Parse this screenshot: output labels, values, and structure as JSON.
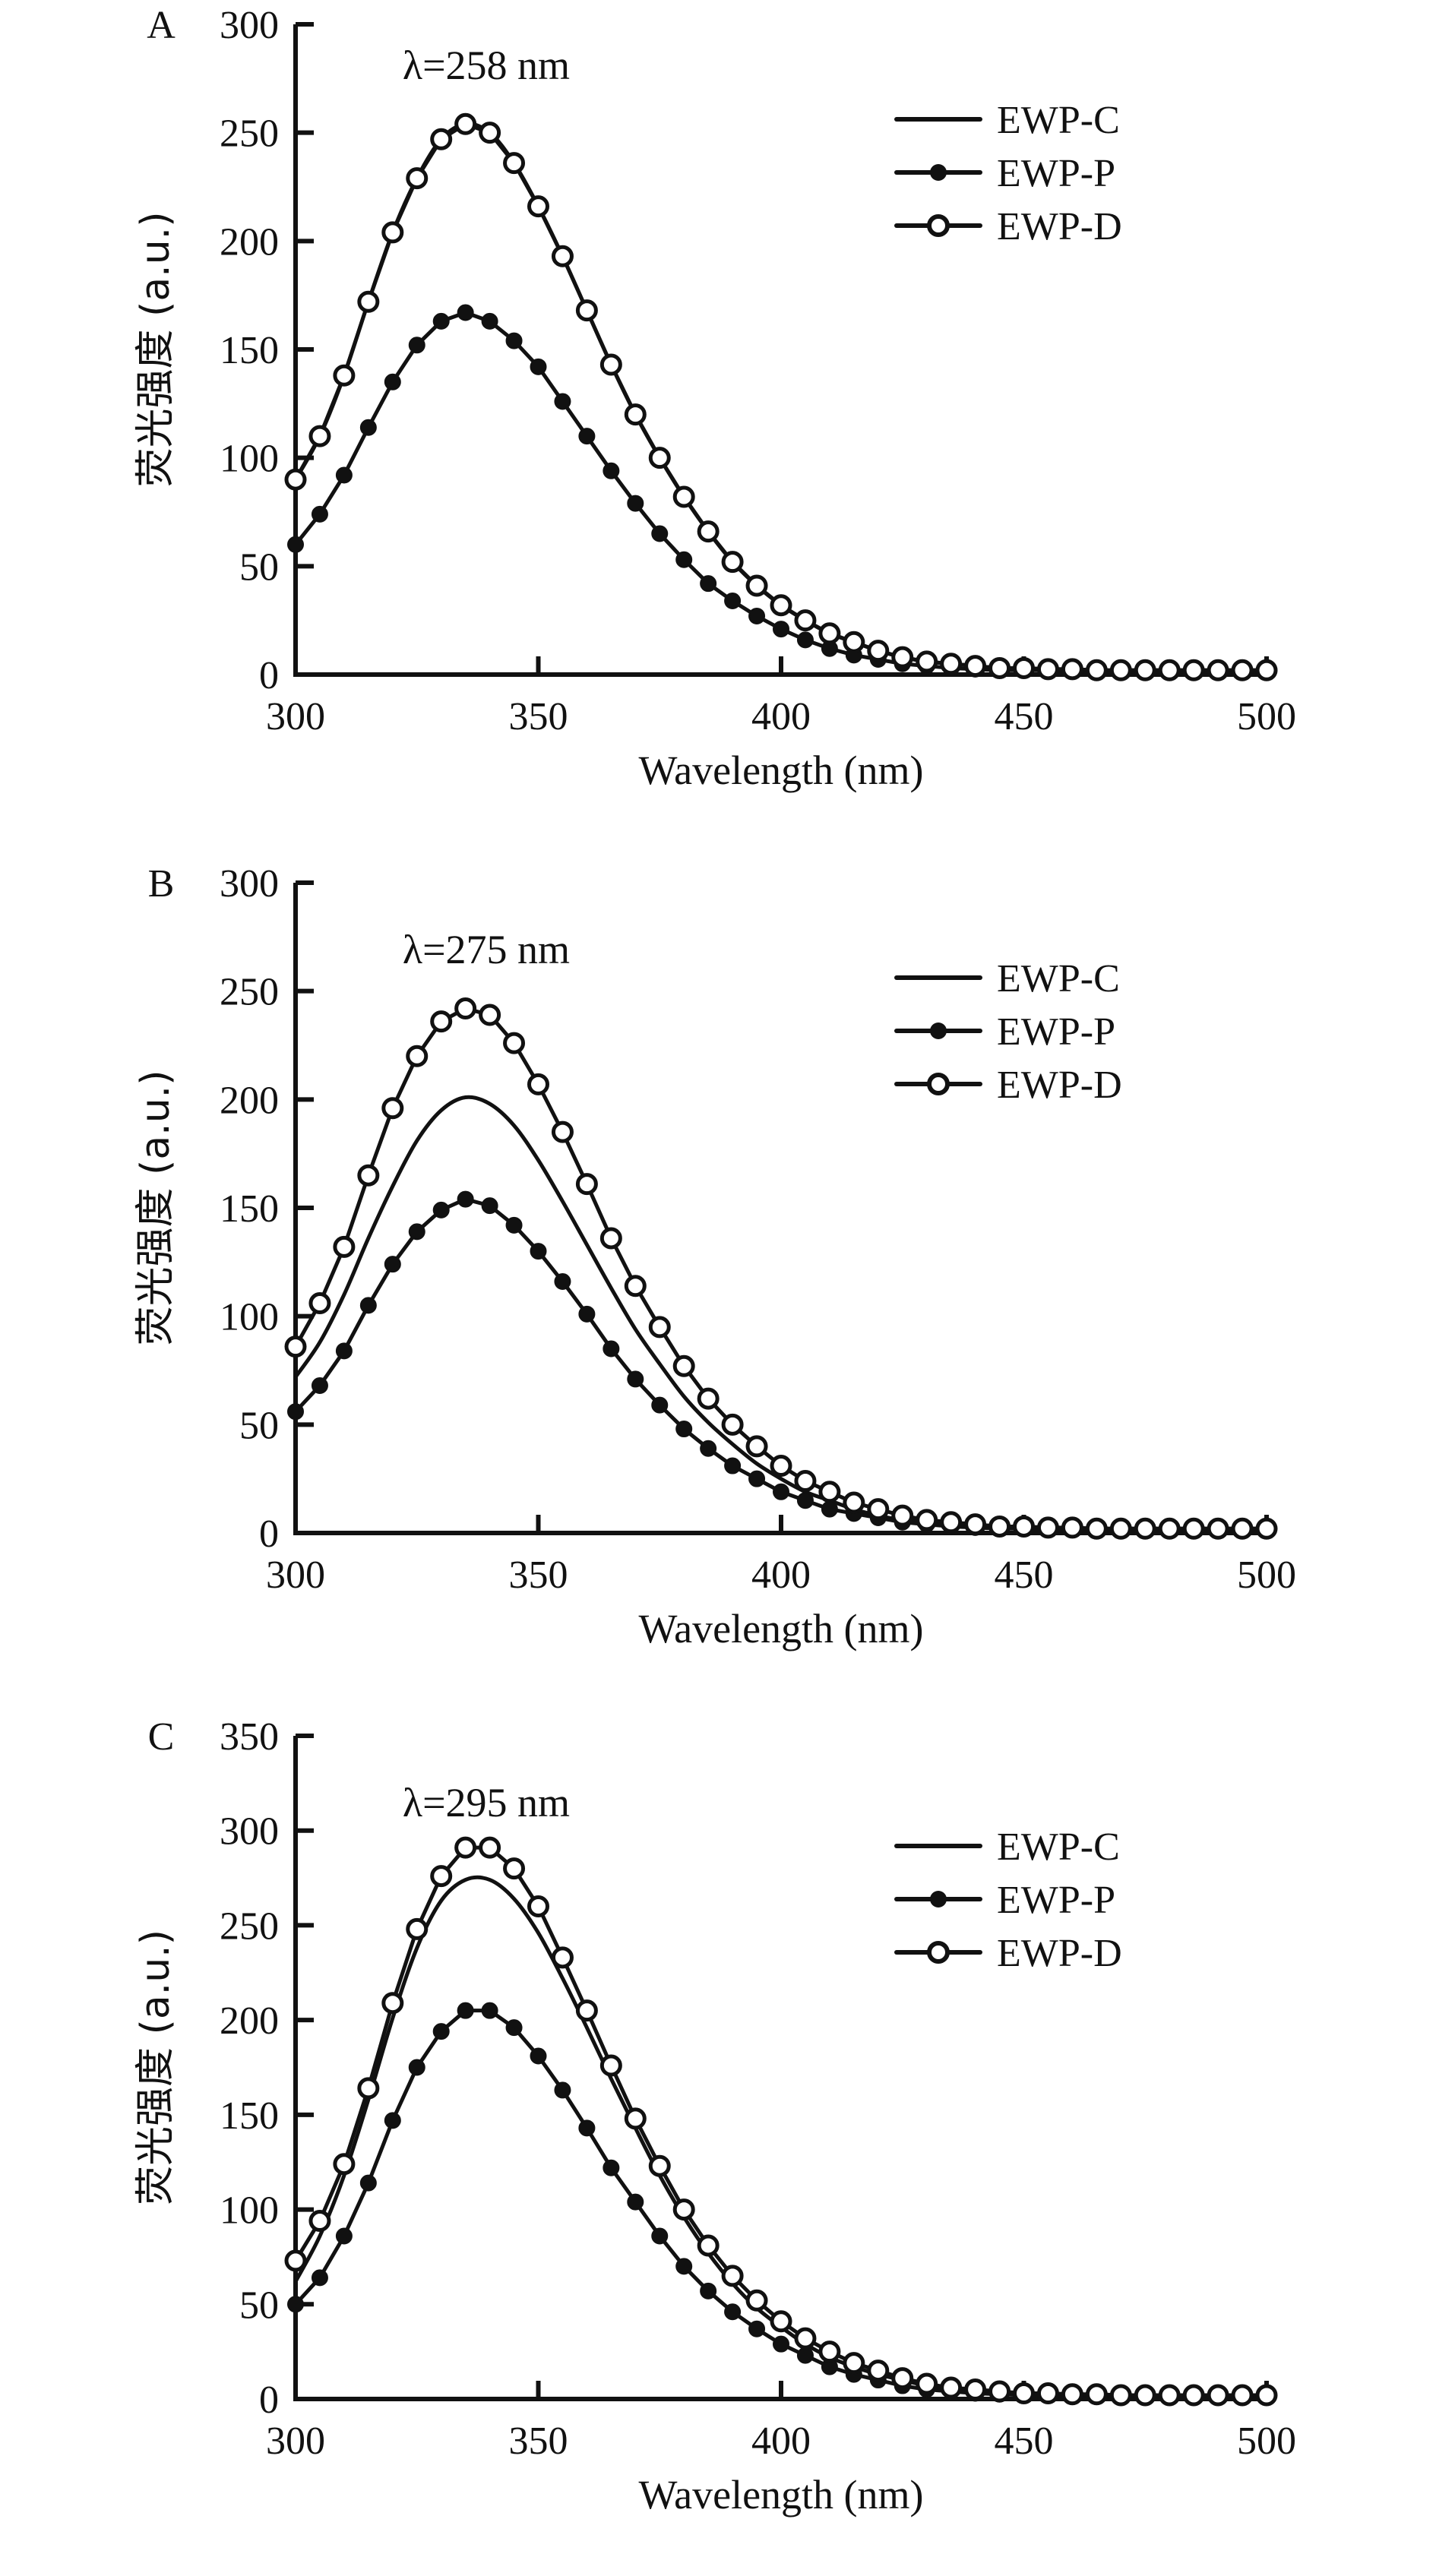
{
  "chart_data": [
    {
      "type": "line",
      "panel": "A",
      "annotation": "λ=258 nm",
      "xlabel": "Wavelength (nm)",
      "ylabel": "荧光强度 (a.u.)",
      "xlim": [
        300,
        500
      ],
      "ylim": [
        0,
        300
      ],
      "xticks": [
        300,
        350,
        400,
        450,
        500
      ],
      "yticks": [
        0,
        50,
        100,
        150,
        200,
        250,
        300
      ],
      "grid": false,
      "legend": "top-right",
      "x": [
        300,
        305,
        310,
        315,
        320,
        325,
        330,
        335,
        340,
        345,
        350,
        355,
        360,
        365,
        370,
        375,
        380,
        385,
        390,
        395,
        400,
        405,
        410,
        415,
        420,
        425,
        430,
        435,
        440,
        445,
        450,
        455,
        460,
        465,
        470,
        475,
        480,
        485,
        490,
        495,
        500
      ],
      "series": [
        {
          "name": "EWP-C",
          "marker": "none",
          "values": [
            90,
            110,
            138,
            172,
            204,
            229,
            247,
            254,
            250,
            236,
            216,
            193,
            168,
            143,
            120,
            100,
            82,
            66,
            52,
            41,
            32,
            25,
            19,
            15,
            11,
            8,
            6,
            5,
            4,
            3,
            3,
            2.5,
            2.5,
            2,
            2,
            2,
            2,
            2,
            2,
            2,
            2
          ]
        },
        {
          "name": "EWP-P",
          "marker": "filled-circle",
          "values": [
            60,
            74,
            92,
            114,
            135,
            152,
            163,
            167,
            163,
            154,
            142,
            126,
            110,
            94,
            79,
            65,
            53,
            42,
            34,
            27,
            21,
            16,
            12,
            9,
            7,
            5,
            4,
            3,
            2.5,
            2,
            2,
            2,
            1.5,
            1.5,
            1.5,
            1.5,
            1.5,
            1.5,
            1.5,
            1.5,
            1.5
          ]
        },
        {
          "name": "EWP-D",
          "marker": "open-circle",
          "values": [
            90,
            110,
            138,
            172,
            204,
            229,
            247,
            254,
            250,
            236,
            216,
            193,
            168,
            143,
            120,
            100,
            82,
            66,
            52,
            41,
            32,
            25,
            19,
            15,
            11,
            8,
            6,
            5,
            4,
            3,
            3,
            2.5,
            2.5,
            2,
            2,
            2,
            2,
            2,
            2,
            2,
            2
          ]
        }
      ]
    },
    {
      "type": "line",
      "panel": "B",
      "annotation": "λ=275 nm",
      "xlabel": "Wavelength (nm)",
      "ylabel": "荧光强度 (a.u.)",
      "xlim": [
        300,
        500
      ],
      "ylim": [
        0,
        300
      ],
      "xticks": [
        300,
        350,
        400,
        450,
        500
      ],
      "yticks": [
        0,
        50,
        100,
        150,
        200,
        250,
        300
      ],
      "grid": false,
      "legend": "top-right",
      "x": [
        300,
        305,
        310,
        315,
        320,
        325,
        330,
        335,
        340,
        345,
        350,
        355,
        360,
        365,
        370,
        375,
        380,
        385,
        390,
        395,
        400,
        405,
        410,
        415,
        420,
        425,
        430,
        435,
        440,
        445,
        450,
        455,
        460,
        465,
        470,
        475,
        480,
        485,
        490,
        495,
        500
      ],
      "series": [
        {
          "name": "EWP-C",
          "marker": "none",
          "values": [
            72,
            88,
            110,
            136,
            160,
            181,
            195,
            201,
            198,
            188,
            172,
            153,
            133,
            113,
            94,
            78,
            63,
            51,
            41,
            32,
            25,
            19,
            15,
            11,
            8,
            6,
            5,
            4,
            3,
            2.5,
            2,
            2,
            2,
            2,
            2,
            2,
            2,
            2,
            2,
            2,
            2
          ]
        },
        {
          "name": "EWP-P",
          "marker": "filled-circle",
          "values": [
            56,
            68,
            84,
            105,
            124,
            139,
            149,
            154,
            151,
            142,
            130,
            116,
            101,
            85,
            71,
            59,
            48,
            39,
            31,
            25,
            19,
            15,
            11,
            9,
            7,
            5,
            4,
            3,
            2.5,
            2,
            2,
            1.5,
            1.5,
            1.5,
            1.5,
            1.5,
            1.5,
            1.5,
            1.5,
            1.5,
            1.5
          ]
        },
        {
          "name": "EWP-D",
          "marker": "open-circle",
          "values": [
            86,
            106,
            132,
            165,
            196,
            220,
            236,
            242,
            239,
            226,
            207,
            185,
            161,
            136,
            114,
            95,
            77,
            62,
            50,
            40,
            31,
            24,
            19,
            14,
            11,
            8,
            6,
            5,
            4,
            3,
            3,
            2.5,
            2.5,
            2,
            2,
            2,
            2,
            2,
            2,
            2,
            2
          ]
        }
      ]
    },
    {
      "type": "line",
      "panel": "C",
      "annotation": "λ=295 nm",
      "xlabel": "Wavelength (nm)",
      "ylabel": "荧光强度 (a.u.)",
      "xlim": [
        300,
        500
      ],
      "ylim": [
        0,
        350
      ],
      "xticks": [
        300,
        350,
        400,
        450,
        500
      ],
      "yticks": [
        0,
        50,
        100,
        150,
        200,
        250,
        300,
        350
      ],
      "grid": false,
      "legend": "top-right",
      "x": [
        300,
        305,
        310,
        315,
        320,
        325,
        330,
        335,
        340,
        345,
        350,
        355,
        360,
        365,
        370,
        375,
        380,
        385,
        390,
        395,
        400,
        405,
        410,
        415,
        420,
        425,
        430,
        435,
        440,
        445,
        450,
        455,
        460,
        465,
        470,
        475,
        480,
        485,
        490,
        495,
        500
      ],
      "series": [
        {
          "name": "EWP-C",
          "marker": "none",
          "values": [
            62,
            86,
            118,
            158,
            201,
            238,
            263,
            274,
            274,
            264,
            246,
            222,
            196,
            169,
            143,
            118,
            96,
            77,
            61,
            48,
            38,
            29,
            22,
            17,
            13,
            10,
            7,
            5,
            4,
            3,
            2.5,
            2,
            2,
            2,
            2,
            2,
            2,
            2,
            2,
            2,
            2
          ]
        },
        {
          "name": "EWP-P",
          "marker": "filled-circle",
          "values": [
            50,
            64,
            86,
            114,
            147,
            175,
            194,
            205,
            205,
            196,
            181,
            163,
            143,
            122,
            104,
            86,
            70,
            57,
            46,
            37,
            29,
            23,
            17,
            13,
            10,
            7,
            5,
            4,
            3,
            2.5,
            2,
            2,
            1.5,
            1.5,
            1.5,
            1.5,
            1.5,
            1.5,
            1.5,
            1.5,
            1.5
          ]
        },
        {
          "name": "EWP-D",
          "marker": "open-circle",
          "values": [
            73,
            94,
            124,
            164,
            209,
            248,
            276,
            291,
            291,
            280,
            260,
            233,
            205,
            176,
            148,
            123,
            100,
            81,
            65,
            52,
            41,
            32,
            25,
            19,
            15,
            11,
            8,
            6,
            5,
            4,
            3,
            3,
            2.5,
            2.5,
            2,
            2,
            2,
            2,
            2,
            2,
            2
          ]
        }
      ]
    }
  ]
}
